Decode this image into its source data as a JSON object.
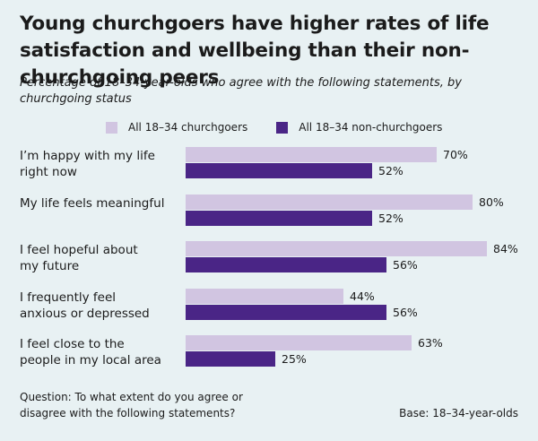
{
  "colors": {
    "background": "#e8f1f3",
    "churchgoers": "#d1c5e1",
    "non_churchgoers": "#4a2586",
    "text": "#1b1b1b"
  },
  "chart_data": {
    "type": "bar",
    "orientation": "horizontal",
    "title": "Young churchgoers have higher rates of life satisfaction and wellbeing than their non-churchgoing peers",
    "subtitle": "Percentage of 18–34-year-olds who agree with the following statements, by churchgoing status",
    "categories": [
      [
        "I’m happy with my life",
        "right now"
      ],
      [
        "My life feels meaningful"
      ],
      [
        "I feel hopeful about",
        "my future"
      ],
      [
        "I frequently feel",
        "anxious or depressed"
      ],
      [
        "I feel close to the",
        "people in my local area"
      ]
    ],
    "series": [
      {
        "name": "All 18–34 churchgoers",
        "values": [
          70,
          80,
          84,
          44,
          63
        ]
      },
      {
        "name": "All 18–34 non-churchgoers",
        "values": [
          52,
          52,
          56,
          56,
          25
        ]
      }
    ],
    "value_suffix": "%",
    "xlim": [
      0,
      100
    ],
    "legend": "top",
    "question": "Question: To what extent do you agree or disagree with the following statements?",
    "base": "Base: 18–34-year-olds"
  }
}
